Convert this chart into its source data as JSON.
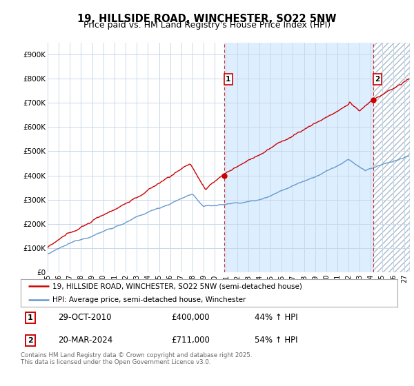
{
  "title": "19, HILLSIDE ROAD, WINCHESTER, SO22 5NW",
  "subtitle": "Price paid vs. HM Land Registry's House Price Index (HPI)",
  "ylim": [
    0,
    950000
  ],
  "xlim_start": 1995.0,
  "xlim_end": 2027.5,
  "yticks": [
    0,
    100000,
    200000,
    300000,
    400000,
    500000,
    600000,
    700000,
    800000,
    900000
  ],
  "ytick_labels": [
    "£0",
    "£100K",
    "£200K",
    "£300K",
    "£400K",
    "£500K",
    "£600K",
    "£700K",
    "£800K",
    "£900K"
  ],
  "xticks": [
    1995,
    1996,
    1997,
    1998,
    1999,
    2000,
    2001,
    2002,
    2003,
    2004,
    2005,
    2006,
    2007,
    2008,
    2009,
    2010,
    2011,
    2012,
    2013,
    2014,
    2015,
    2016,
    2017,
    2018,
    2019,
    2020,
    2021,
    2022,
    2023,
    2024,
    2025,
    2026,
    2027
  ],
  "red_color": "#cc0000",
  "blue_color": "#6699cc",
  "fill_color": "#ddeeff",
  "marker1_x": 2010.83,
  "marker1_y": 400000,
  "marker2_x": 2024.22,
  "marker2_y": 711000,
  "vline1_x": 2010.83,
  "vline2_x": 2024.22,
  "legend_red": "19, HILLSIDE ROAD, WINCHESTER, SO22 5NW (semi-detached house)",
  "legend_blue": "HPI: Average price, semi-detached house, Winchester",
  "footer": "Contains HM Land Registry data © Crown copyright and database right 2025.\nThis data is licensed under the Open Government Licence v3.0.",
  "background_color": "#ffffff",
  "grid_color": "#c8d8e8",
  "title_fontsize": 10.5,
  "subtitle_fontsize": 9
}
